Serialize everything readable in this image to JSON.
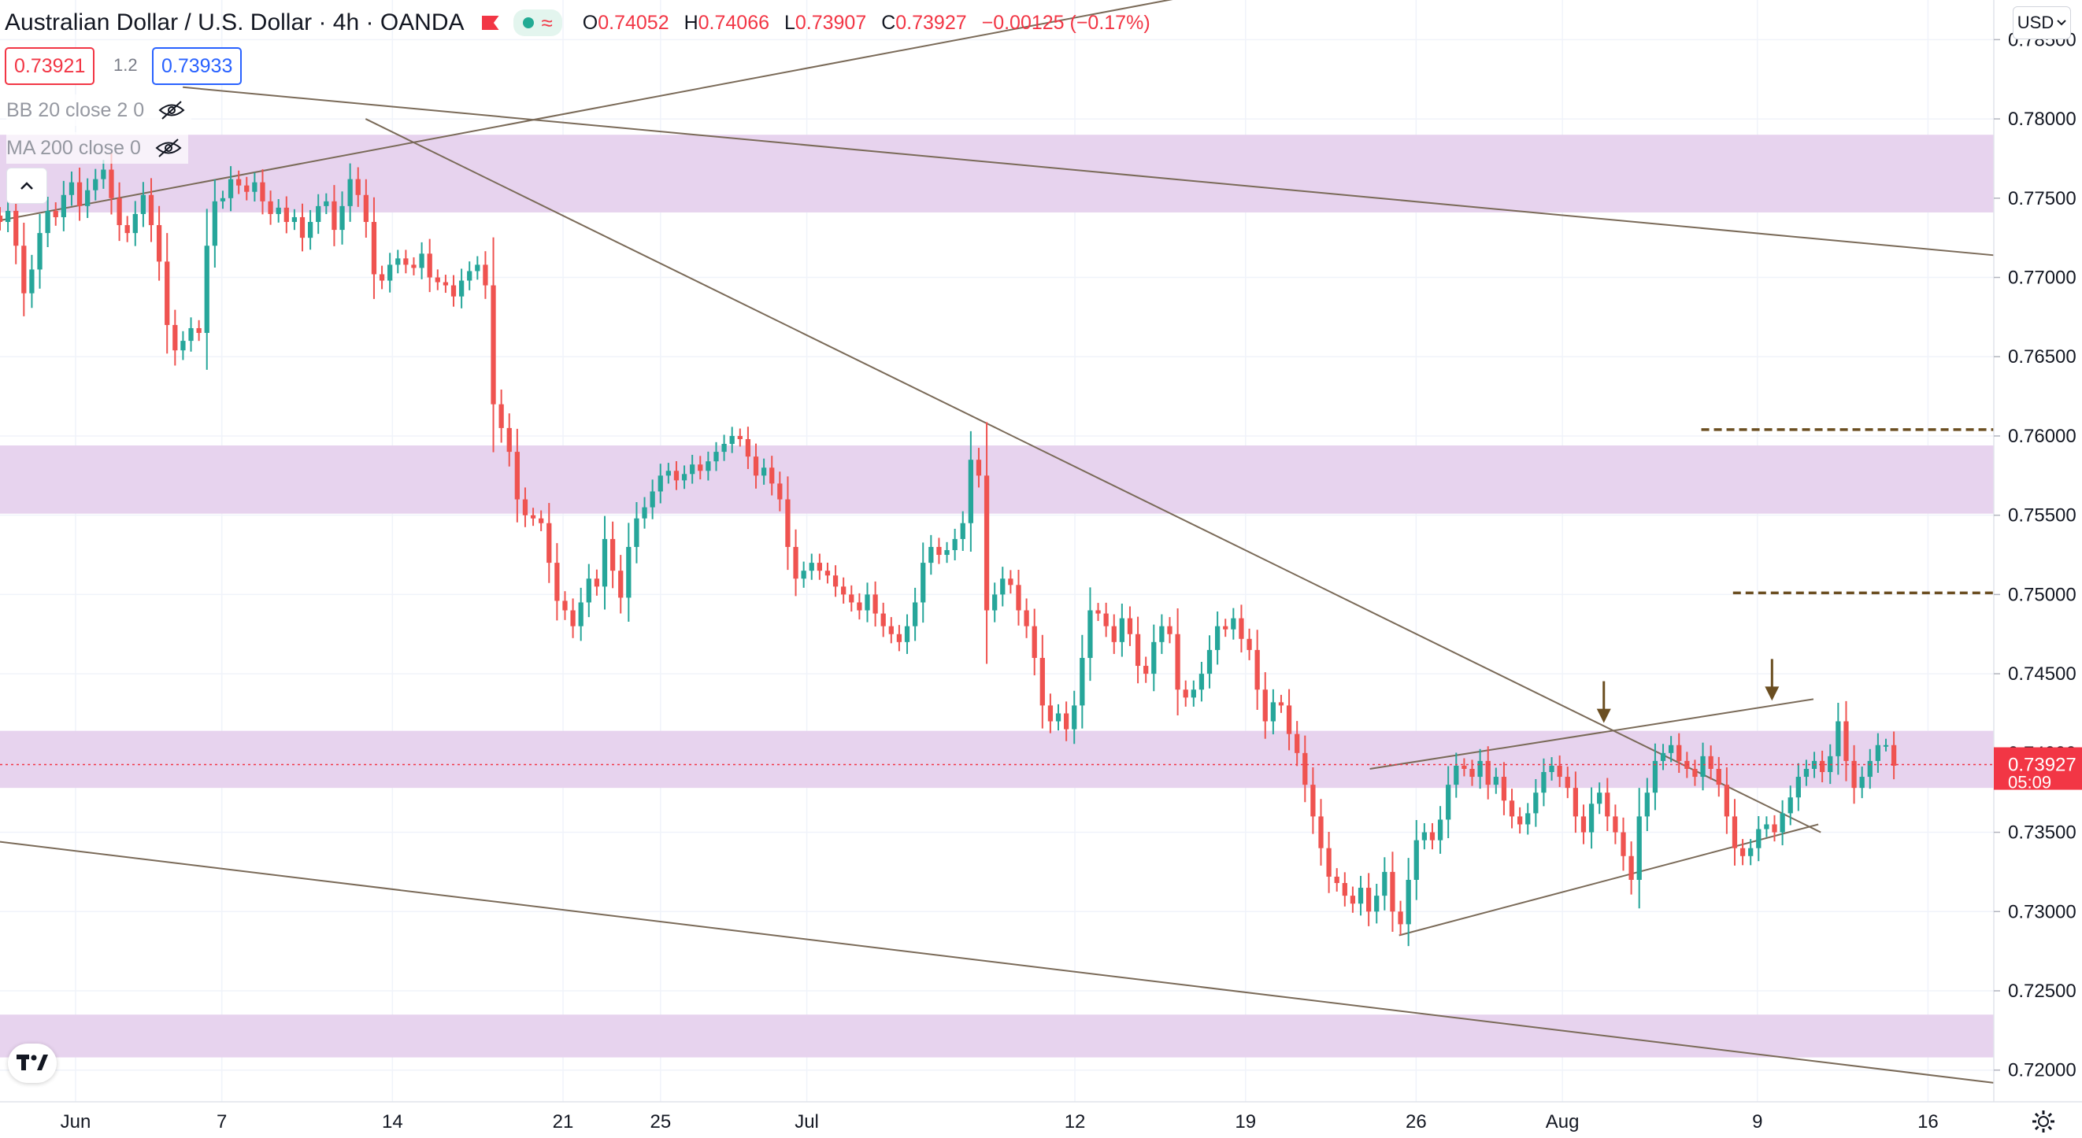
{
  "header": {
    "symbol_title": "Australian Dollar / U.S. Dollar · 4h · OANDA",
    "ohlc": {
      "open_label": "O",
      "open": "0.74052",
      "high_label": "H",
      "high": "0.74066",
      "low_label": "L",
      "low": "0.73907",
      "close_label": "C",
      "close": "0.73927",
      "change": "−0.00125 (−0.17%)"
    },
    "bid": "0.73921",
    "spread": "1.2",
    "ask": "0.73933"
  },
  "indicators": [
    {
      "label": "BB 20 close 2 0",
      "visibility_icon": "eye-crossed-icon"
    },
    {
      "label": "MA 200 close 0",
      "visibility_icon": "eye-crossed-icon"
    }
  ],
  "currency_selector": "USD",
  "last_price_tag": {
    "price": "0.73927",
    "countdown": "05:09",
    "color": "#f23645"
  },
  "colors": {
    "up": "#26a69a",
    "down": "#ef5350",
    "zone": "#e7d3ee",
    "trendline": "#7a6a58",
    "dashed_level": "#6b4e21",
    "arrow": "#6b4e21"
  },
  "chart_data": {
    "type": "candlestick",
    "symbol": "AUD/USD",
    "timeframe": "4h",
    "source": "OANDA",
    "ylim": [
      0.718,
      0.7875
    ],
    "y_ticks": [
      "0.78500",
      "0.78000",
      "0.77500",
      "0.77000",
      "0.76500",
      "0.76000",
      "0.75500",
      "0.75000",
      "0.74500",
      "0.74000",
      "0.73500",
      "0.73000",
      "0.72500",
      "0.72000"
    ],
    "x_ticks": [
      "Jun",
      "7",
      "14",
      "21",
      "25",
      "Jul",
      "12",
      "19",
      "26",
      "Aug",
      "9",
      "16"
    ],
    "x_tick_days": [
      1,
      7,
      14,
      21,
      25,
      31,
      42,
      49,
      56,
      62,
      70,
      77
    ],
    "x_range_days": [
      -2.1,
      79.7
    ],
    "closes": [
      0.7735,
      0.7742,
      0.772,
      0.769,
      0.7705,
      0.7728,
      0.7742,
      0.7738,
      0.7752,
      0.776,
      0.7745,
      0.7755,
      0.7762,
      0.7768,
      0.775,
      0.7733,
      0.7728,
      0.774,
      0.7752,
      0.7733,
      0.771,
      0.767,
      0.7654,
      0.766,
      0.7668,
      0.7665,
      0.772,
      0.7748,
      0.775,
      0.7762,
      0.7758,
      0.7754,
      0.776,
      0.7748,
      0.774,
      0.7744,
      0.7735,
      0.7738,
      0.7725,
      0.7735,
      0.7745,
      0.7748,
      0.773,
      0.7745,
      0.7762,
      0.7752,
      0.7735,
      0.7702,
      0.7698,
      0.7708,
      0.7712,
      0.7708,
      0.7706,
      0.7715,
      0.77,
      0.7697,
      0.7695,
      0.7688,
      0.7698,
      0.7704,
      0.7708,
      0.7695,
      0.762,
      0.7605,
      0.759,
      0.756,
      0.755,
      0.7548,
      0.7545,
      0.752,
      0.7496,
      0.749,
      0.748,
      0.7495,
      0.751,
      0.7505,
      0.7535,
      0.7515,
      0.7498,
      0.753,
      0.7548,
      0.7555,
      0.7565,
      0.7575,
      0.7578,
      0.7572,
      0.7576,
      0.7582,
      0.7578,
      0.7584,
      0.759,
      0.7595,
      0.76,
      0.7598,
      0.7587,
      0.7575,
      0.758,
      0.757,
      0.756,
      0.753,
      0.751,
      0.7515,
      0.752,
      0.7515,
      0.7512,
      0.7505,
      0.75,
      0.7495,
      0.749,
      0.75,
      0.7488,
      0.748,
      0.7475,
      0.747,
      0.748,
      0.7495,
      0.752,
      0.753,
      0.7525,
      0.7528,
      0.7535,
      0.7545,
      0.7585,
      0.7575,
      0.749,
      0.75,
      0.751,
      0.7506,
      0.749,
      0.748,
      0.746,
      0.743,
      0.742,
      0.7425,
      0.7415,
      0.743,
      0.746,
      0.749,
      0.7488,
      0.748,
      0.747,
      0.7485,
      0.7475,
      0.7455,
      0.745,
      0.747,
      0.748,
      0.7475,
      0.744,
      0.7435,
      0.744,
      0.745,
      0.7465,
      0.748,
      0.7478,
      0.7485,
      0.7472,
      0.7465,
      0.744,
      0.742,
      0.7432,
      0.743,
      0.7412,
      0.74,
      0.738,
      0.736,
      0.734,
      0.7322,
      0.7318,
      0.731,
      0.7305,
      0.7315,
      0.73,
      0.731,
      0.7325,
      0.73,
      0.7292,
      0.732,
      0.7345,
      0.735,
      0.7345,
      0.7358,
      0.738,
      0.7392,
      0.739,
      0.7385,
      0.7395,
      0.738,
      0.7385,
      0.737,
      0.736,
      0.7355,
      0.7362,
      0.7375,
      0.7388,
      0.7392,
      0.7385,
      0.7378,
      0.736,
      0.735,
      0.7368,
      0.7375,
      0.736,
      0.735,
      0.7335,
      0.732,
      0.736,
      0.7375,
      0.7395,
      0.74,
      0.7405,
      0.7395,
      0.739,
      0.7385,
      0.7398,
      0.739,
      0.738,
      0.736,
      0.734,
      0.7335,
      0.734,
      0.7352,
      0.7355,
      0.735,
      0.7362,
      0.7372,
      0.7385,
      0.739,
      0.7395,
      0.7388,
      0.7398,
      0.742,
      0.7395,
      0.7378,
      0.7385,
      0.7395,
      0.7405,
      0.7405,
      0.7392
    ],
    "horizontal_zones": [
      [
        0.7741,
        0.779
      ],
      [
        0.7551,
        0.7594
      ],
      [
        0.7378,
        0.7414
      ],
      [
        0.7208,
        0.7235
      ]
    ],
    "trendlines": [
      {
        "from": [
          -2.1,
          0.7736
        ],
        "to": [
          52.4,
          0.7894
        ]
      },
      {
        "from": [
          5.4,
          0.782
        ],
        "to": [
          79.7,
          0.7714
        ]
      },
      {
        "from": [
          12.9,
          0.78
        ],
        "to": [
          72.6,
          0.735
        ]
      },
      {
        "from": [
          -2.1,
          0.7344
        ],
        "to": [
          79.7,
          0.7192
        ]
      },
      {
        "from": [
          54.1,
          0.739
        ],
        "to": [
          72.3,
          0.7434
        ]
      },
      {
        "from": [
          55.3,
          0.7285
        ],
        "to": [
          72.5,
          0.7355
        ]
      }
    ],
    "dashed_levels": [
      {
        "price": 0.7604,
        "from": 67.7,
        "to": 81.9
      },
      {
        "price": 0.7501,
        "from": 69.0,
        "to": 80.4
      }
    ],
    "arrows": [
      {
        "x": 63.7,
        "price": 0.7418
      },
      {
        "x": 70.6,
        "price": 0.7432
      }
    ],
    "last_price": 0.73927
  }
}
